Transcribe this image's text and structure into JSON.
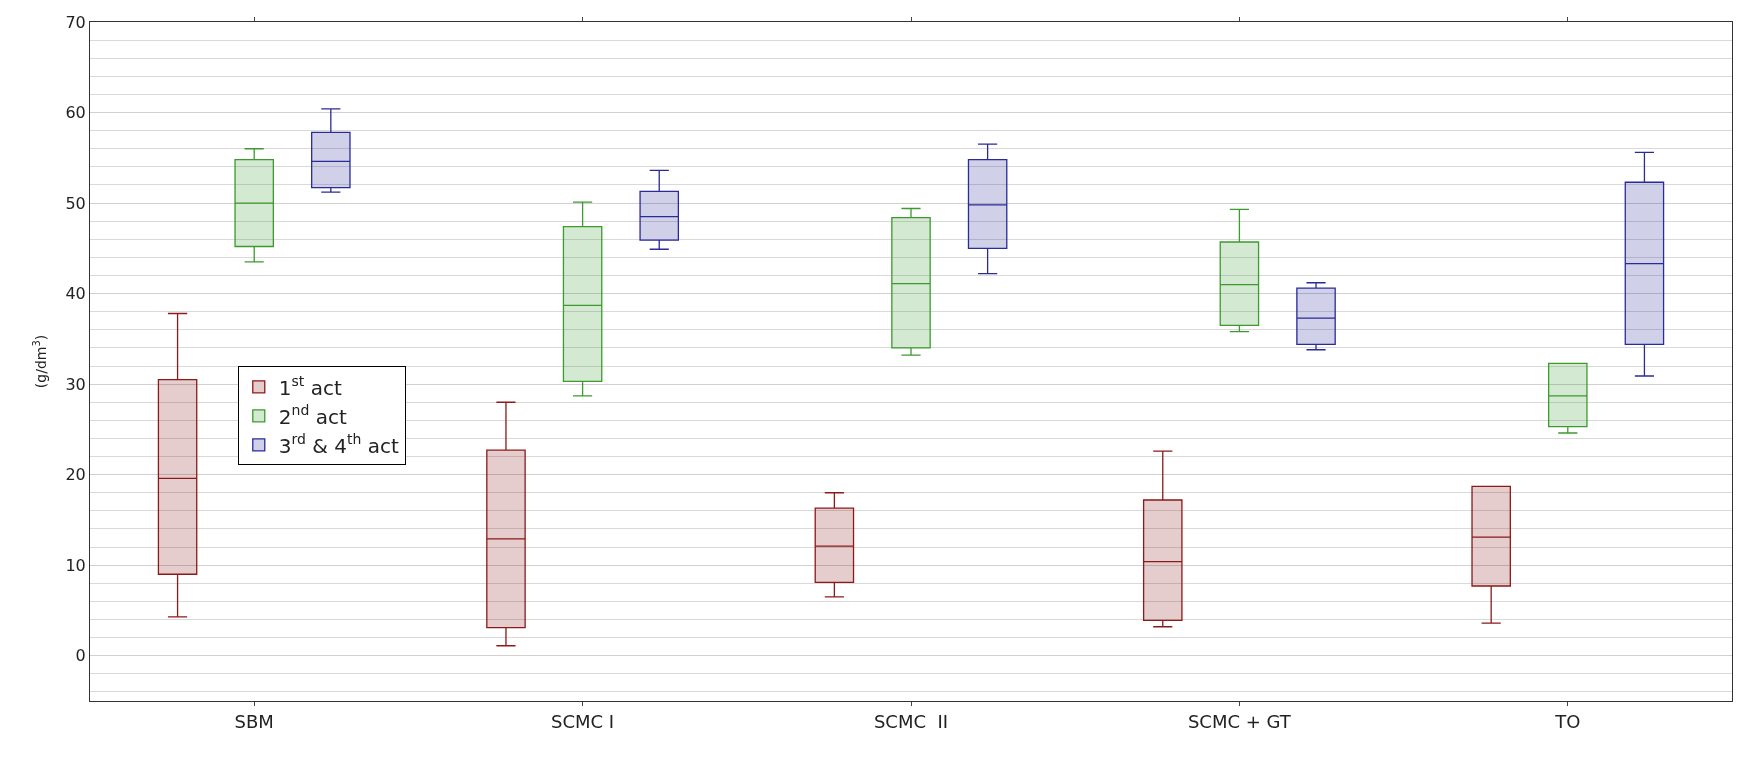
{
  "chart_data": {
    "type": "box",
    "ylabel": "(g/dm$^{3}$)",
    "categories": [
      "SBM",
      "SCMC I",
      "SCMC  II",
      "SCMC + GT",
      "TO"
    ],
    "ylim": [
      -5,
      70
    ],
    "yticks": [
      0,
      10,
      20,
      30,
      40,
      50,
      60,
      70
    ],
    "grid": "y",
    "legend": "left",
    "series": [
      {
        "name": "1$^{st}$ act",
        "color": "#8b1a1a",
        "boxes": [
          {
            "low": 4.3,
            "q1": 9.0,
            "median": 19.6,
            "q3": 30.5,
            "high": 37.8
          },
          {
            "low": 1.1,
            "q1": 3.1,
            "median": 12.9,
            "q3": 22.7,
            "high": 28.0
          },
          {
            "low": 6.5,
            "q1": 8.1,
            "median": 12.1,
            "q3": 16.3,
            "high": 18.0
          },
          {
            "low": 3.2,
            "q1": 3.9,
            "median": 10.4,
            "q3": 17.2,
            "high": 22.6
          },
          {
            "low": 3.6,
            "q1": 7.7,
            "median": 13.1,
            "q3": 18.7,
            "high": 18.7
          }
        ]
      },
      {
        "name": "2$^{nd}$ act",
        "color": "#3c9a2e",
        "boxes": [
          {
            "low": 43.5,
            "q1": 45.2,
            "median": 50.0,
            "q3": 54.8,
            "high": 56.0
          },
          {
            "low": 28.7,
            "q1": 30.3,
            "median": 38.7,
            "q3": 47.4,
            "high": 50.1
          },
          {
            "low": 33.2,
            "q1": 34.0,
            "median": 41.1,
            "q3": 48.4,
            "high": 49.4
          },
          {
            "low": 35.8,
            "q1": 36.5,
            "median": 41.0,
            "q3": 45.7,
            "high": 49.3
          },
          {
            "low": 24.6,
            "q1": 25.3,
            "median": 28.7,
            "q3": 32.3,
            "high": 32.3
          }
        ]
      },
      {
        "name": "3$^{rd}$ & 4$^{th}$ act",
        "color": "#2a2a9a",
        "boxes": [
          {
            "low": 51.2,
            "q1": 51.7,
            "median": 54.6,
            "q3": 57.8,
            "high": 60.4
          },
          {
            "low": 44.9,
            "q1": 45.9,
            "median": 48.5,
            "q3": 51.3,
            "high": 53.6
          },
          {
            "low": 42.2,
            "q1": 45.0,
            "median": 49.8,
            "q3": 54.8,
            "high": 56.5
          },
          {
            "low": 33.8,
            "q1": 34.4,
            "median": 37.3,
            "q3": 40.6,
            "high": 41.2
          },
          {
            "low": 30.9,
            "q1": 34.4,
            "median": 43.3,
            "q3": 52.3,
            "high": 55.6
          }
        ]
      }
    ]
  }
}
